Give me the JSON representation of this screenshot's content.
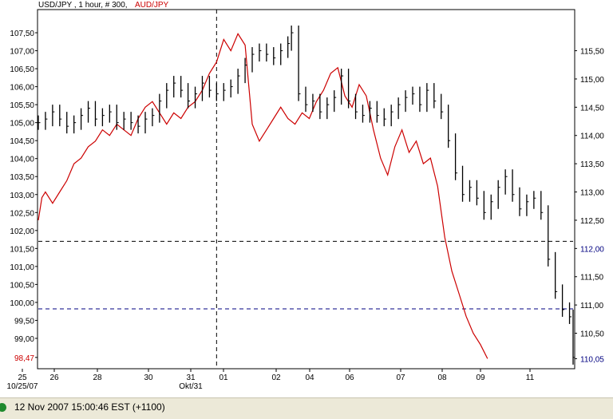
{
  "chart_data": {
    "type": "line",
    "title": "USD/JPY , 1 hour, # 300, ",
    "title_overlay": "AUD/JPY",
    "x_tick_labels": [
      "25",
      "26",
      "28",
      "30",
      "31",
      "01",
      "02",
      "04",
      "06",
      "07",
      "08",
      "09",
      "11"
    ],
    "x_sub_labels": [
      "10/25/07",
      "Okt/31"
    ],
    "left_axis": {
      "series": "USD/JPY",
      "ylim": [
        98.2,
        108.1
      ],
      "ticks": [
        "107,50",
        "107,00",
        "106,50",
        "106,00",
        "105,50",
        "105,00",
        "104,50",
        "104,00",
        "103,50",
        "103,00",
        "102,50",
        "102,00",
        "101,50",
        "101,00",
        "100,50",
        "100,00",
        "99,50",
        "99,00",
        "98,47"
      ],
      "ref_lines": [
        101.7,
        99.82
      ],
      "last_value_label": "98,47",
      "last_value": 98.47
    },
    "right_axis": {
      "series": "AUD/JPY",
      "ylim": [
        109.9,
        116.2
      ],
      "ticks": [
        "115,50",
        "115,00",
        "114,50",
        "114,00",
        "113,50",
        "113,00",
        "112,50",
        "112,00",
        "111,50",
        "111,00",
        "110,50",
        "110,05"
      ],
      "highlight_labels": [
        "112,00",
        "110,05"
      ]
    },
    "series": [
      {
        "name": "USD/JPY",
        "color": "#000000",
        "style": "hlc-bars",
        "values": [
          [
            0,
            105.0
          ],
          [
            4,
            105.1
          ],
          [
            8,
            105.3
          ],
          [
            12,
            105.1
          ],
          [
            16,
            104.9
          ],
          [
            20,
            105.0
          ],
          [
            24,
            105.2
          ],
          [
            28,
            105.4
          ],
          [
            32,
            105.1
          ],
          [
            36,
            105.2
          ],
          [
            40,
            105.3
          ],
          [
            44,
            105.0
          ],
          [
            48,
            105.1
          ],
          [
            52,
            105.0
          ],
          [
            56,
            104.9
          ],
          [
            60,
            105.1
          ],
          [
            64,
            105.2
          ],
          [
            68,
            105.6
          ],
          [
            72,
            105.9
          ],
          [
            76,
            106.1
          ],
          [
            80,
            105.9
          ],
          [
            84,
            105.6
          ],
          [
            88,
            105.8
          ],
          [
            92,
            106.1
          ],
          [
            96,
            105.9
          ],
          [
            100,
            105.8
          ],
          [
            104,
            105.9
          ],
          [
            108,
            106.0
          ],
          [
            112,
            106.3
          ],
          [
            116,
            106.6
          ],
          [
            120,
            106.9
          ],
          [
            124,
            107.0
          ],
          [
            128,
            106.9
          ],
          [
            132,
            106.8
          ],
          [
            136,
            107.0
          ],
          [
            140,
            107.2
          ],
          [
            142,
            107.5
          ],
          [
            146,
            105.8
          ],
          [
            150,
            105.5
          ],
          [
            154,
            105.6
          ],
          [
            158,
            105.3
          ],
          [
            162,
            105.5
          ],
          [
            166,
            105.7
          ],
          [
            170,
            106.3
          ],
          [
            174,
            105.6
          ],
          [
            178,
            105.3
          ],
          [
            182,
            105.2
          ],
          [
            186,
            105.4
          ],
          [
            190,
            105.2
          ],
          [
            194,
            105.1
          ],
          [
            198,
            105.3
          ],
          [
            202,
            105.5
          ],
          [
            206,
            105.7
          ],
          [
            210,
            105.8
          ],
          [
            214,
            105.5
          ],
          [
            218,
            105.9
          ],
          [
            222,
            105.6
          ],
          [
            226,
            105.3
          ],
          [
            230,
            104.5
          ],
          [
            234,
            103.6
          ],
          [
            238,
            103.0
          ],
          [
            242,
            103.2
          ],
          [
            246,
            102.9
          ],
          [
            250,
            102.5
          ],
          [
            254,
            102.8
          ],
          [
            258,
            103.2
          ],
          [
            262,
            103.5
          ],
          [
            266,
            103.0
          ],
          [
            270,
            102.6
          ],
          [
            274,
            102.8
          ],
          [
            278,
            102.9
          ],
          [
            282,
            102.5
          ],
          [
            286,
            101.2
          ],
          [
            290,
            100.3
          ],
          [
            294,
            99.8
          ],
          [
            298,
            99.6
          ],
          [
            300,
            98.47
          ]
        ]
      },
      {
        "name": "AUD/JPY",
        "color": "#cc0000",
        "style": "line",
        "values": [
          [
            0,
            112.5
          ],
          [
            2,
            112.9
          ],
          [
            4,
            113.0
          ],
          [
            8,
            112.8
          ],
          [
            12,
            113.0
          ],
          [
            16,
            113.2
          ],
          [
            20,
            113.5
          ],
          [
            24,
            113.6
          ],
          [
            28,
            113.8
          ],
          [
            32,
            113.9
          ],
          [
            36,
            114.1
          ],
          [
            40,
            114.0
          ],
          [
            44,
            114.2
          ],
          [
            48,
            114.1
          ],
          [
            52,
            114.0
          ],
          [
            56,
            114.3
          ],
          [
            60,
            114.5
          ],
          [
            64,
            114.6
          ],
          [
            68,
            114.4
          ],
          [
            72,
            114.2
          ],
          [
            76,
            114.4
          ],
          [
            80,
            114.3
          ],
          [
            84,
            114.5
          ],
          [
            88,
            114.6
          ],
          [
            92,
            114.8
          ],
          [
            96,
            115.1
          ],
          [
            100,
            115.3
          ],
          [
            104,
            115.7
          ],
          [
            108,
            115.5
          ],
          [
            112,
            115.8
          ],
          [
            116,
            115.6
          ],
          [
            120,
            114.2
          ],
          [
            124,
            113.9
          ],
          [
            128,
            114.1
          ],
          [
            132,
            114.3
          ],
          [
            136,
            114.5
          ],
          [
            140,
            114.3
          ],
          [
            144,
            114.2
          ],
          [
            148,
            114.4
          ],
          [
            152,
            114.3
          ],
          [
            156,
            114.6
          ],
          [
            160,
            114.8
          ],
          [
            164,
            115.1
          ],
          [
            168,
            115.2
          ],
          [
            172,
            114.7
          ],
          [
            176,
            114.5
          ],
          [
            180,
            114.9
          ],
          [
            184,
            114.7
          ],
          [
            188,
            114.1
          ],
          [
            192,
            113.6
          ],
          [
            196,
            113.3
          ],
          [
            200,
            113.8
          ],
          [
            204,
            114.1
          ],
          [
            208,
            113.7
          ],
          [
            212,
            113.9
          ],
          [
            216,
            113.5
          ],
          [
            220,
            113.6
          ],
          [
            224,
            113.1
          ],
          [
            228,
            112.2
          ],
          [
            232,
            111.6
          ],
          [
            236,
            111.2
          ],
          [
            240,
            110.8
          ],
          [
            244,
            110.5
          ],
          [
            248,
            110.3
          ],
          [
            252,
            110.05
          ]
        ]
      }
    ]
  },
  "status": {
    "text": "12 Nov 2007 15:00:46  EST (+1100)"
  }
}
